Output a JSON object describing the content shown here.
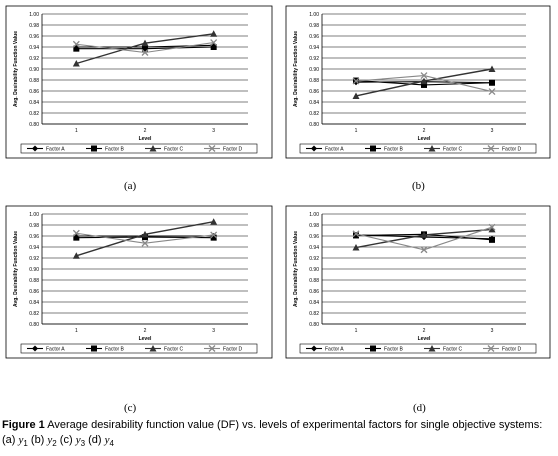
{
  "chart_data": [
    {
      "type": "line",
      "panel_label": "(a)",
      "ylabel": "Avg. Desirability Function Value",
      "xlabel": "Level",
      "ylim": [
        0.8,
        1.0
      ],
      "yticks": [
        "0.80",
        "0.82",
        "0.84",
        "0.86",
        "0.88",
        "0.90",
        "0.92",
        "0.94",
        "0.96",
        "0.98",
        "1.00"
      ],
      "categories": [
        "1",
        "2",
        "3"
      ],
      "grid": true,
      "legend": "bottom",
      "series": [
        {
          "name": "Factor A",
          "marker": "diamond",
          "color": "#000000",
          "values": [
            0.94,
            0.94,
            0.943
          ]
        },
        {
          "name": "Factor B",
          "marker": "square",
          "color": "#000000",
          "values": [
            0.937,
            0.937,
            0.94
          ]
        },
        {
          "name": "Factor C",
          "marker": "triangle",
          "color": "#333333",
          "values": [
            0.91,
            0.947,
            0.964
          ]
        },
        {
          "name": "Factor D",
          "marker": "x",
          "color": "#888888",
          "values": [
            0.945,
            0.93,
            0.948
          ]
        }
      ]
    },
    {
      "type": "line",
      "panel_label": "(b)",
      "ylabel": "Avg. Desirability Function Value",
      "xlabel": "Level",
      "ylim": [
        0.8,
        1.0
      ],
      "yticks": [
        "0.80",
        "0.82",
        "0.84",
        "0.86",
        "0.88",
        "0.90",
        "0.92",
        "0.94",
        "0.96",
        "0.98",
        "1.00"
      ],
      "categories": [
        "1",
        "2",
        "3"
      ],
      "grid": true,
      "legend": "bottom",
      "series": [
        {
          "name": "Factor A",
          "marker": "diamond",
          "color": "#000000",
          "values": [
            0.876,
            0.877,
            0.875
          ]
        },
        {
          "name": "Factor B",
          "marker": "square",
          "color": "#000000",
          "values": [
            0.879,
            0.871,
            0.875
          ]
        },
        {
          "name": "Factor C",
          "marker": "triangle",
          "color": "#333333",
          "values": [
            0.851,
            0.878,
            0.9
          ]
        },
        {
          "name": "Factor D",
          "marker": "x",
          "color": "#888888",
          "values": [
            0.878,
            0.888,
            0.859
          ]
        }
      ]
    },
    {
      "type": "line",
      "panel_label": "(c)",
      "ylabel": "Avg. Desirability Function Value",
      "xlabel": "Level",
      "ylim": [
        0.8,
        1.0
      ],
      "yticks": [
        "0.80",
        "0.82",
        "0.84",
        "0.86",
        "0.88",
        "0.90",
        "0.92",
        "0.94",
        "0.96",
        "0.98",
        "1.00"
      ],
      "categories": [
        "1",
        "2",
        "3"
      ],
      "grid": true,
      "legend": "bottom",
      "series": [
        {
          "name": "Factor A",
          "marker": "diamond",
          "color": "#000000",
          "values": [
            0.96,
            0.96,
            0.96
          ]
        },
        {
          "name": "Factor B",
          "marker": "square",
          "color": "#000000",
          "values": [
            0.957,
            0.958,
            0.957
          ]
        },
        {
          "name": "Factor C",
          "marker": "triangle",
          "color": "#333333",
          "values": [
            0.924,
            0.963,
            0.986
          ]
        },
        {
          "name": "Factor D",
          "marker": "x",
          "color": "#888888",
          "values": [
            0.965,
            0.947,
            0.962
          ]
        }
      ]
    },
    {
      "type": "line",
      "panel_label": "(d)",
      "ylabel": "Avg. Desirability Function Value",
      "xlabel": "Level",
      "ylim": [
        0.8,
        1.0
      ],
      "yticks": [
        "0.80",
        "0.82",
        "0.84",
        "0.86",
        "0.88",
        "0.90",
        "0.92",
        "0.94",
        "0.96",
        "0.98",
        "1.00"
      ],
      "categories": [
        "1",
        "2",
        "3"
      ],
      "grid": true,
      "legend": "bottom",
      "series": [
        {
          "name": "Factor A",
          "marker": "diamond",
          "color": "#000000",
          "values": [
            0.962,
            0.958,
            0.955
          ]
        },
        {
          "name": "Factor B",
          "marker": "square",
          "color": "#000000",
          "values": [
            0.961,
            0.963,
            0.953
          ]
        },
        {
          "name": "Factor C",
          "marker": "triangle",
          "color": "#333333",
          "values": [
            0.939,
            0.962,
            0.972
          ]
        },
        {
          "name": "Factor D",
          "marker": "x",
          "color": "#888888",
          "values": [
            0.964,
            0.935,
            0.976
          ]
        }
      ]
    }
  ],
  "caption": {
    "figure_label": "Figure 1",
    "text": " Average desirability function value (DF) vs. levels of experimental factors for single objective systems:",
    "parts": [
      {
        "prefix": "(a) ",
        "var": "y",
        "sub": "1"
      },
      {
        "prefix": " (b) ",
        "var": "y",
        "sub": "2"
      },
      {
        "prefix": " (c) ",
        "var": "y",
        "sub": "3"
      },
      {
        "prefix": " (d) ",
        "var": "y",
        "sub": "4"
      }
    ]
  }
}
